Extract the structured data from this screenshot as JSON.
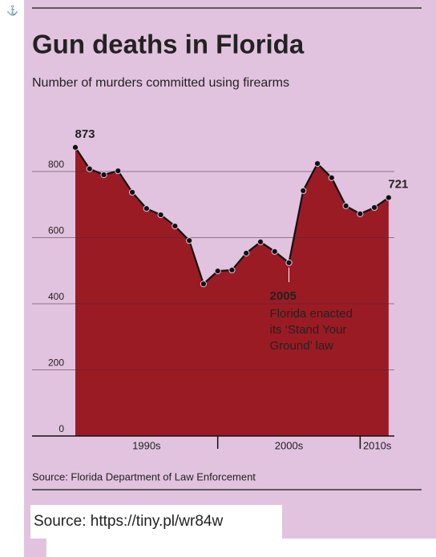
{
  "icon": "⚓",
  "chart_data": {
    "type": "area",
    "title": "Gun deaths in Florida",
    "subtitle": "Number of murders committed using firearms",
    "source": "Source: Florida Department of Law Enforcement",
    "x": [
      1990,
      1991,
      1992,
      1993,
      1994,
      1995,
      1996,
      1997,
      1998,
      1999,
      2000,
      2001,
      2002,
      2003,
      2004,
      2005,
      2006,
      2007,
      2008,
      2009,
      2010,
      2011,
      2012
    ],
    "values": [
      873,
      808,
      790,
      802,
      737,
      688,
      669,
      635,
      591,
      460,
      499,
      502,
      553,
      587,
      558,
      524,
      742,
      824,
      781,
      696,
      672,
      691,
      721
    ],
    "color": "#9b1b24",
    "xlim": [
      1990,
      2012.4
    ],
    "xticks": [
      {
        "value": 1995,
        "label": "1990s"
      },
      {
        "value": 2005,
        "label": "2000s"
      },
      {
        "value": 2011.2,
        "label": "2010s"
      }
    ],
    "x_dividers": [
      2000,
      2010
    ],
    "ylim": [
      0,
      900
    ],
    "yticks": [
      0,
      200,
      400,
      600,
      800
    ],
    "grid": true,
    "annotation": {
      "x": 2005,
      "title": "2005",
      "lines": [
        "Florida enacted",
        "its ‘Stand Your",
        "Ground’ law"
      ]
    }
  },
  "footer": {
    "source": "Source: https://tiny.pl/wr84w"
  }
}
